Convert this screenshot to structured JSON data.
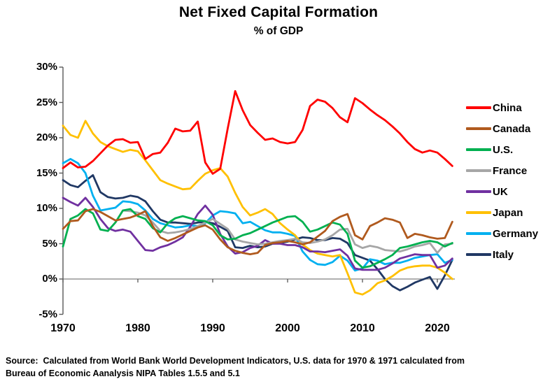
{
  "title": "Net Fixed Capital Formation",
  "subtitle": "% of GDP",
  "source": {
    "line1": "Source:  Calculated from World Bank World Development Indicators, U.S. data for 1970 & 1971 calculated from",
    "line2": "Bureau of Economic Aanalysis NIPA Tables 1.5.5 and 5.1"
  },
  "chart_data": {
    "type": "line",
    "title": "Net Fixed Capital Formation",
    "subtitle": "% of GDP",
    "xlabel": "",
    "ylabel": "",
    "x_range": [
      1970,
      2022
    ],
    "ylim": [
      -5,
      30
    ],
    "grid": "zero-line-only",
    "legend_position": "right",
    "axis_color": "#595959",
    "zero_line_color": "#7f7f7f",
    "x_ticks": [
      1970,
      1980,
      1990,
      2000,
      2010,
      2020
    ],
    "x_tick_labels": [
      "1970",
      "1980",
      "1990",
      "2000",
      "2010",
      "2020"
    ],
    "y_ticks": [
      30,
      25,
      20,
      15,
      10,
      5,
      0,
      -5
    ],
    "y_tick_labels": [
      "30%",
      "25%",
      "20%",
      "15%",
      "10%",
      "5%",
      "0%",
      "-5%"
    ],
    "series": [
      {
        "name": "China",
        "color": "#FF0000",
        "start_year": 1970,
        "values": [
          15.7,
          16.5,
          15.8,
          15.9,
          16.7,
          17.8,
          18.9,
          19.7,
          19.8,
          19.3,
          19.4,
          17.0,
          17.7,
          17.9,
          19.3,
          21.3,
          20.9,
          21.0,
          22.3,
          16.5,
          14.9,
          15.6,
          21.3,
          26.6,
          23.9,
          21.8,
          20.7,
          19.7,
          19.9,
          19.4,
          19.2,
          19.4,
          21.1,
          24.5,
          25.4,
          25.1,
          24.2,
          22.9,
          22.2,
          25.6,
          24.9,
          24.0,
          23.2,
          22.5,
          21.6,
          20.6,
          19.4,
          18.4,
          17.9,
          18.2,
          17.9,
          17.0,
          16.0
        ]
      },
      {
        "name": "Canada",
        "color": "#B05A1E",
        "start_year": 1970,
        "values": [
          7.1,
          8.2,
          8.3,
          9.6,
          9.9,
          9.5,
          8.9,
          8.3,
          8.5,
          8.7,
          9.1,
          9.6,
          7.5,
          5.9,
          5.4,
          5.8,
          6.3,
          6.8,
          7.3,
          7.6,
          7.0,
          5.6,
          4.5,
          4.0,
          3.7,
          3.5,
          3.7,
          4.8,
          5.1,
          5.2,
          5.4,
          5.2,
          4.9,
          5.2,
          6.0,
          6.8,
          8.2,
          8.8,
          9.2,
          6.2,
          5.6,
          7.5,
          8.0,
          8.6,
          8.4,
          8.0,
          5.8,
          6.4,
          6.2,
          5.9,
          5.7,
          5.8,
          8.1
        ]
      },
      {
        "name": "U.S.",
        "color": "#00B050",
        "start_year": 1970,
        "values": [
          4.6,
          8.5,
          9.0,
          9.9,
          9.3,
          7.0,
          6.8,
          8.0,
          9.7,
          9.9,
          8.9,
          8.5,
          7.2,
          6.6,
          7.9,
          8.6,
          8.9,
          8.6,
          8.3,
          8.2,
          7.6,
          6.2,
          5.6,
          5.7,
          6.2,
          6.5,
          7.0,
          7.5,
          8.0,
          8.4,
          8.8,
          8.9,
          8.1,
          6.7,
          7.0,
          7.5,
          8.0,
          7.7,
          6.4,
          2.6,
          1.6,
          1.8,
          2.3,
          2.8,
          3.4,
          4.4,
          4.6,
          4.9,
          5.2,
          5.4,
          5.2,
          4.6,
          5.1
        ]
      },
      {
        "name": "France",
        "color": "#A6A6A6",
        "start_year": 1978,
        "values": [
          9.7,
          9.6,
          9.4,
          9.0,
          8.0,
          6.8,
          6.5,
          6.6,
          6.8,
          7.1,
          7.5,
          8.0,
          8.5,
          7.8,
          7.1,
          5.6,
          5.3,
          5.1,
          4.9,
          5.0,
          5.2,
          5.4,
          5.5,
          5.7,
          5.2,
          5.1,
          5.3,
          5.6,
          6.2,
          7.0,
          7.1,
          4.9,
          4.4,
          4.7,
          4.5,
          4.1,
          4.0,
          3.9,
          4.2,
          4.6,
          4.8,
          5.1,
          3.7,
          4.9,
          5.0
        ]
      },
      {
        "name": "UK",
        "color": "#7030A0",
        "start_year": 1970,
        "values": [
          11.5,
          10.9,
          10.4,
          11.5,
          10.2,
          8.5,
          7.2,
          6.8,
          7.0,
          6.7,
          5.4,
          4.1,
          4.0,
          4.5,
          4.8,
          5.3,
          5.9,
          7.4,
          9.2,
          10.4,
          9.1,
          6.4,
          4.6,
          3.6,
          3.8,
          4.4,
          4.7,
          5.5,
          5.0,
          5.0,
          4.8,
          4.8,
          4.5,
          3.9,
          3.9,
          3.8,
          4.0,
          4.2,
          3.3,
          1.5,
          1.3,
          1.3,
          1.3,
          1.6,
          2.2,
          2.9,
          3.2,
          3.5,
          3.4,
          3.4,
          1.6,
          1.9,
          2.9
        ]
      },
      {
        "name": "Japan",
        "color": "#FFC000",
        "start_year": 1970,
        "values": [
          21.7,
          20.4,
          20.0,
          22.4,
          20.6,
          19.4,
          18.8,
          18.4,
          18.0,
          18.3,
          18.1,
          16.8,
          15.4,
          14.0,
          13.5,
          13.1,
          12.7,
          12.8,
          13.9,
          14.9,
          15.4,
          15.7,
          14.5,
          12.2,
          10.2,
          9.0,
          9.4,
          9.9,
          9.2,
          7.9,
          7.0,
          6.2,
          4.9,
          4.1,
          3.6,
          3.4,
          3.2,
          3.4,
          0.8,
          -1.9,
          -2.2,
          -1.6,
          -0.6,
          -0.2,
          0.4,
          1.2,
          1.6,
          1.8,
          1.9,
          1.9,
          1.6,
          0.9,
          0.0
        ]
      },
      {
        "name": "Germany",
        "color": "#00B0F0",
        "start_year": 1970,
        "values": [
          16.4,
          17.0,
          16.4,
          15.0,
          11.8,
          9.7,
          9.9,
          10.1,
          11.0,
          10.9,
          10.6,
          9.7,
          8.5,
          7.9,
          7.6,
          7.3,
          7.4,
          7.6,
          7.5,
          7.9,
          9.0,
          9.6,
          9.5,
          9.3,
          7.9,
          8.1,
          7.5,
          6.9,
          6.6,
          6.6,
          6.4,
          6.1,
          3.9,
          2.7,
          2.1,
          2.0,
          2.4,
          3.3,
          2.6,
          1.2,
          1.5,
          2.8,
          2.6,
          2.1,
          2.3,
          2.3,
          2.6,
          3.0,
          3.2,
          3.4,
          3.5,
          2.3,
          2.7
        ]
      },
      {
        "name": "Italy",
        "color": "#203864",
        "start_year": 1970,
        "values": [
          14.0,
          13.3,
          13.0,
          13.9,
          14.7,
          12.3,
          11.6,
          11.4,
          11.5,
          11.8,
          11.6,
          11.0,
          9.6,
          8.4,
          8.0,
          8.0,
          7.9,
          7.8,
          8.0,
          8.1,
          7.9,
          7.4,
          6.8,
          4.5,
          4.4,
          4.7,
          4.5,
          4.6,
          5.0,
          5.1,
          5.3,
          5.6,
          5.9,
          5.8,
          5.5,
          5.5,
          5.8,
          5.7,
          5.1,
          3.4,
          3.0,
          2.6,
          1.4,
          0.0,
          -1.0,
          -1.6,
          -1.1,
          -0.5,
          -0.1,
          0.3,
          -1.4,
          0.5,
          2.7
        ]
      }
    ]
  }
}
